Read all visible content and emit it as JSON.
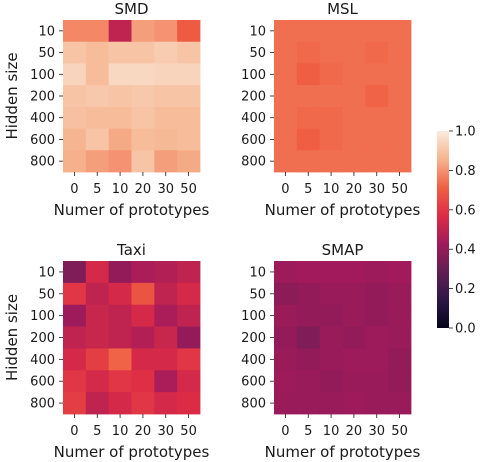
{
  "chart_data": [
    {
      "type": "heatmap",
      "title": "SMD",
      "xlabel": "Numer of prototypes",
      "ylabel": "Hidden size",
      "x_categories": [
        "0",
        "5",
        "10",
        "20",
        "30",
        "50"
      ],
      "y_categories": [
        "10",
        "50",
        "100",
        "200",
        "400",
        "600",
        "800"
      ],
      "values": [
        [
          0.78,
          0.78,
          0.5,
          0.82,
          0.8,
          0.7
        ],
        [
          0.9,
          0.88,
          0.9,
          0.9,
          0.92,
          0.9
        ],
        [
          0.94,
          0.88,
          0.95,
          0.95,
          0.94,
          0.94
        ],
        [
          0.9,
          0.91,
          0.9,
          0.91,
          0.9,
          0.9
        ],
        [
          0.89,
          0.88,
          0.88,
          0.9,
          0.88,
          0.88
        ],
        [
          0.86,
          0.9,
          0.84,
          0.88,
          0.87,
          0.88
        ],
        [
          0.85,
          0.82,
          0.8,
          0.9,
          0.82,
          0.84
        ]
      ]
    },
    {
      "type": "heatmap",
      "title": "MSL",
      "xlabel": "Numer of prototypes",
      "ylabel": "",
      "x_categories": [
        "0",
        "5",
        "10",
        "20",
        "30",
        "50"
      ],
      "y_categories": [
        "10",
        "50",
        "100",
        "200",
        "400",
        "600",
        "800"
      ],
      "values": [
        [
          0.74,
          0.74,
          0.74,
          0.74,
          0.74,
          0.74
        ],
        [
          0.74,
          0.73,
          0.74,
          0.74,
          0.73,
          0.74
        ],
        [
          0.74,
          0.71,
          0.73,
          0.74,
          0.74,
          0.74
        ],
        [
          0.74,
          0.74,
          0.74,
          0.74,
          0.72,
          0.74
        ],
        [
          0.74,
          0.73,
          0.73,
          0.74,
          0.74,
          0.74
        ],
        [
          0.74,
          0.71,
          0.73,
          0.74,
          0.74,
          0.74
        ],
        [
          0.74,
          0.74,
          0.74,
          0.74,
          0.74,
          0.74
        ]
      ]
    },
    {
      "type": "heatmap",
      "title": "Taxi",
      "xlabel": "Numer of prototypes",
      "ylabel": "Hidden size",
      "x_categories": [
        "0",
        "5",
        "10",
        "20",
        "30",
        "50"
      ],
      "y_categories": [
        "10",
        "50",
        "100",
        "200",
        "400",
        "600",
        "800"
      ],
      "values": [
        [
          0.35,
          0.55,
          0.4,
          0.45,
          0.47,
          0.5
        ],
        [
          0.6,
          0.5,
          0.55,
          0.68,
          0.5,
          0.55
        ],
        [
          0.42,
          0.52,
          0.5,
          0.55,
          0.45,
          0.5
        ],
        [
          0.5,
          0.52,
          0.5,
          0.47,
          0.52,
          0.4
        ],
        [
          0.55,
          0.62,
          0.72,
          0.55,
          0.55,
          0.6
        ],
        [
          0.6,
          0.55,
          0.6,
          0.58,
          0.45,
          0.55
        ],
        [
          0.62,
          0.5,
          0.55,
          0.6,
          0.55,
          0.57
        ]
      ]
    },
    {
      "type": "heatmap",
      "title": "SMAP",
      "xlabel": "Numer of prototypes",
      "ylabel": "",
      "x_categories": [
        "0",
        "5",
        "10",
        "20",
        "30",
        "50"
      ],
      "y_categories": [
        "10",
        "50",
        "100",
        "200",
        "400",
        "600",
        "800"
      ],
      "values": [
        [
          0.42,
          0.43,
          0.43,
          0.43,
          0.42,
          0.43
        ],
        [
          0.38,
          0.4,
          0.41,
          0.41,
          0.4,
          0.41
        ],
        [
          0.41,
          0.4,
          0.4,
          0.41,
          0.4,
          0.41
        ],
        [
          0.4,
          0.35,
          0.41,
          0.4,
          0.42,
          0.41
        ],
        [
          0.41,
          0.4,
          0.41,
          0.42,
          0.42,
          0.4
        ],
        [
          0.42,
          0.41,
          0.4,
          0.41,
          0.41,
          0.4
        ],
        [
          0.41,
          0.41,
          0.41,
          0.42,
          0.41,
          0.41
        ]
      ]
    }
  ],
  "colorbar": {
    "min": 0.0,
    "max": 1.0,
    "ticks": [
      "0.0",
      "0.2",
      "0.4",
      "0.6",
      "0.8",
      "1.0"
    ],
    "colormap": "rocket",
    "color_stops": [
      "#03051a",
      "#2d1745",
      "#611f53",
      "#a11a5b",
      "#dd2c45",
      "#f06043",
      "#f6b48f",
      "#faebdd"
    ]
  }
}
